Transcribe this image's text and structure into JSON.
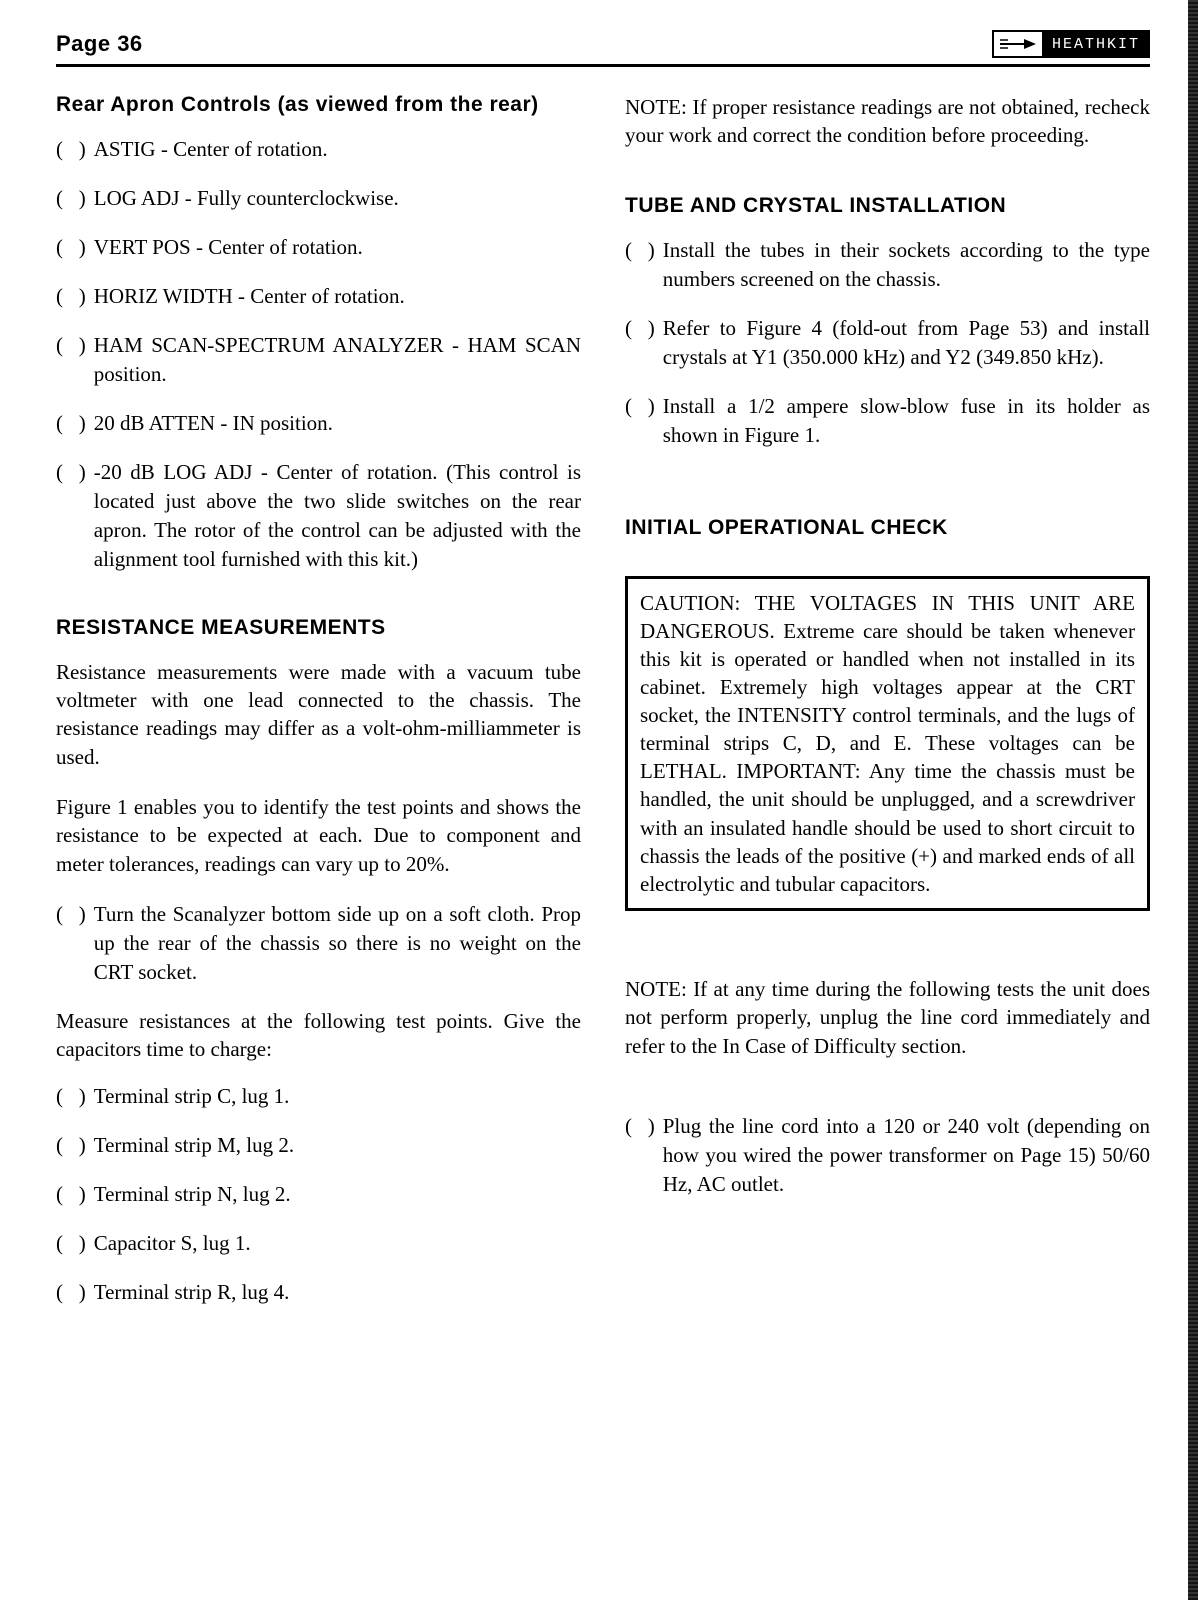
{
  "header": {
    "page_label": "Page 36",
    "brand": "HEATHKIT"
  },
  "left": {
    "section1_title": "Rear Apron Controls (as viewed from the rear)",
    "items1": [
      "ASTIG - Center of rotation.",
      "LOG ADJ - Fully counterclockwise.",
      "VERT POS - Center of rotation.",
      "HORIZ WIDTH - Center of rotation.",
      "HAM SCAN-SPECTRUM ANALYZER - HAM SCAN position.",
      "20 dB ATTEN - IN position.",
      "-20 dB LOG ADJ - Center of rotation. (This control is located just above the two slide switches on the rear apron. The rotor of the control can be adjusted with the alignment tool furnished with this kit.)"
    ],
    "section2_title": "RESISTANCE MEASUREMENTS",
    "para1": "Resistance measurements were made with a vacuum tube voltmeter with one lead connected to the chassis. The resistance readings may differ as a volt-ohm-milliammeter is used.",
    "para2": "Figure 1 enables you to identify the test points and shows the resistance to be expected at each. Due to component and meter tolerances, readings can vary up to 20%.",
    "items2": [
      "Turn the Scanalyzer bottom side up on a soft cloth. Prop up the rear of the chassis so there is no weight on the CRT socket."
    ],
    "para3": "Measure resistances at the following test points. Give the capacitors time to charge:",
    "items3": [
      "Terminal strip C, lug 1.",
      "Terminal strip M, lug 2.",
      "Terminal strip N, lug 2.",
      "Capacitor S, lug 1.",
      "Terminal strip R, lug 4."
    ]
  },
  "right": {
    "note1": "NOTE: If proper resistance readings are not obtained, recheck your work and correct the condition before proceeding.",
    "section1_title": "TUBE AND CRYSTAL INSTALLATION",
    "items1": [
      "Install the tubes in their sockets according to the type numbers screened on the chassis.",
      "Refer to Figure 4 (fold-out from Page 53) and install crystals at Y1 (350.000 kHz) and Y2 (349.850 kHz).",
      "Install a 1/2 ampere slow-blow fuse in its holder as shown in Figure 1."
    ],
    "section2_title": "INITIAL OPERATIONAL CHECK",
    "caution": "CAUTION: THE VOLTAGES IN THIS UNIT ARE DANGEROUS. Extreme care should be taken whenever this kit is operated or handled when not installed in its cabinet. Extremely high voltages appear at the CRT socket, the INTENSITY control terminals, and the lugs of terminal strips C, D, and E. These voltages can be LETHAL. IMPORTANT: Any time the chassis must be handled, the unit should be unplugged, and a screwdriver with an insulated handle should be used to short circuit to chassis the leads of the positive (+) and marked ends of all electrolytic and tubular capacitors.",
    "note2": "NOTE: If at any time during the following tests the unit does not perform properly, unplug the line cord immediately and refer to the In Case of Difficulty section.",
    "items2": [
      "Plug the line cord into a 120 or 240 volt (depending on how you wired the power transformer on Page 15) 50/60 Hz, AC outlet."
    ]
  },
  "checkbox_marker": "(   )"
}
